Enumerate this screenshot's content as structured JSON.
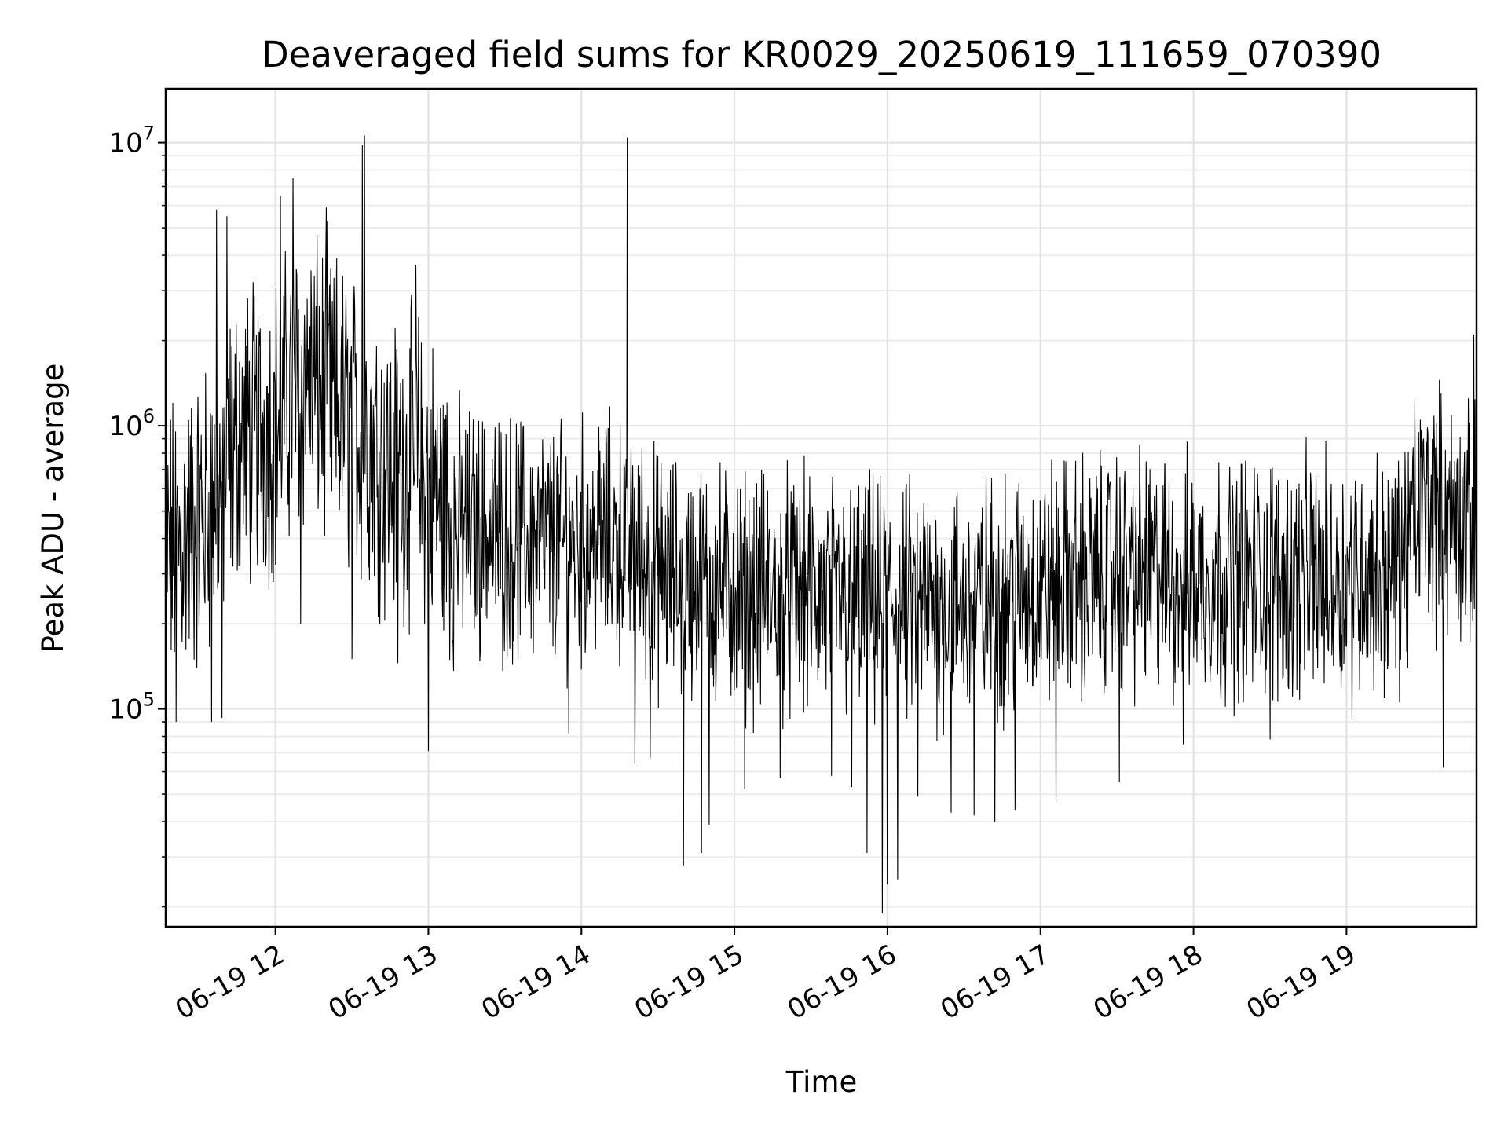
{
  "chart_data": {
    "type": "line",
    "title": "Deaveraged field sums for KR0029_20250619_111659_070390",
    "xlabel": "Time",
    "ylabel": "Peak ADU - average",
    "xlim": [
      "2025-06-19 11:17",
      "2025-06-19 19:51"
    ],
    "ylim": [
      17000,
      15500000
    ],
    "yscale": "log",
    "grid": true,
    "line_color": "#000000",
    "x_ticks": [
      "06-19 12",
      "06-19 13",
      "06-19 14",
      "06-19 15",
      "06-19 16",
      "06-19 17",
      "06-19 18",
      "06-19 19"
    ],
    "y_ticks": [
      {
        "value": 100000,
        "base": "10",
        "exp": "5"
      },
      {
        "value": 1000000,
        "base": "10",
        "exp": "6"
      },
      {
        "value": 10000000,
        "base": "10",
        "exp": "7"
      }
    ],
    "series": [
      {
        "points": [
          {
            "x": "2025-06-19 11:17",
            "y": 350000
          },
          {
            "x": "2025-06-19 11:30",
            "y": 450000
          },
          {
            "x": "2025-06-19 11:38",
            "y": 600000
          },
          {
            "x": "2025-06-19 11:45",
            "y": 900000
          },
          {
            "x": "2025-06-19 12:00",
            "y": 1000000
          },
          {
            "x": "2025-06-19 12:10",
            "y": 1500000
          },
          {
            "x": "2025-06-19 12:20",
            "y": 1300000
          },
          {
            "x": "2025-06-19 12:30",
            "y": 1000000
          },
          {
            "x": "2025-06-19 12:35",
            "y": 950000
          },
          {
            "x": "2025-06-19 12:45",
            "y": 700000
          },
          {
            "x": "2025-06-19 12:55",
            "y": 750000
          },
          {
            "x": "2025-06-19 13:10",
            "y": 450000
          },
          {
            "x": "2025-06-19 13:30",
            "y": 400000
          },
          {
            "x": "2025-06-19 13:50",
            "y": 380000
          },
          {
            "x": "2025-06-19 14:15",
            "y": 400000
          },
          {
            "x": "2025-06-19 14:30",
            "y": 300000
          },
          {
            "x": "2025-06-19 15:00",
            "y": 260000
          },
          {
            "x": "2025-06-19 15:30",
            "y": 250000
          },
          {
            "x": "2025-06-19 16:00",
            "y": 230000
          },
          {
            "x": "2025-06-19 16:30",
            "y": 230000
          },
          {
            "x": "2025-06-19 17:00",
            "y": 270000
          },
          {
            "x": "2025-06-19 17:30",
            "y": 300000
          },
          {
            "x": "2025-06-19 18:00",
            "y": 290000
          },
          {
            "x": "2025-06-19 18:30",
            "y": 290000
          },
          {
            "x": "2025-06-19 19:00",
            "y": 290000
          },
          {
            "x": "2025-06-19 19:20",
            "y": 300000
          },
          {
            "x": "2025-06-19 19:30",
            "y": 550000
          },
          {
            "x": "2025-06-19 19:45",
            "y": 450000
          },
          {
            "x": "2025-06-19 19:51",
            "y": 400000
          }
        ],
        "spikes": [
          {
            "x": "2025-06-19 11:37",
            "y": 5800000
          },
          {
            "x": "2025-06-19 11:41",
            "y": 5500000
          },
          {
            "x": "2025-06-19 12:02",
            "y": 6500000
          },
          {
            "x": "2025-06-19 12:07",
            "y": 7500000
          },
          {
            "x": "2025-06-19 12:20",
            "y": 5900000
          },
          {
            "x": "2025-06-19 12:34",
            "y": 9800000
          },
          {
            "x": "2025-06-19 12:35",
            "y": 10600000
          },
          {
            "x": "2025-06-19 12:55",
            "y": 3700000
          },
          {
            "x": "2025-06-19 14:18",
            "y": 10400000
          },
          {
            "x": "2025-06-19 19:50",
            "y": 2100000
          }
        ],
        "dips": [
          {
            "x": "2025-06-19 11:21",
            "y": 90000
          },
          {
            "x": "2025-06-19 11:35",
            "y": 90000
          },
          {
            "x": "2025-06-19 11:39",
            "y": 93000
          },
          {
            "x": "2025-06-19 12:10",
            "y": 200000
          },
          {
            "x": "2025-06-19 12:30",
            "y": 150000
          },
          {
            "x": "2025-06-19 12:48",
            "y": 145000
          },
          {
            "x": "2025-06-19 13:00",
            "y": 71000
          },
          {
            "x": "2025-06-19 13:55",
            "y": 82000
          },
          {
            "x": "2025-06-19 14:21",
            "y": 64000
          },
          {
            "x": "2025-06-19 14:27",
            "y": 67000
          },
          {
            "x": "2025-06-19 14:40",
            "y": 28000
          },
          {
            "x": "2025-06-19 14:47",
            "y": 31000
          },
          {
            "x": "2025-06-19 14:50",
            "y": 39000
          },
          {
            "x": "2025-06-19 15:04",
            "y": 52000
          },
          {
            "x": "2025-06-19 15:18",
            "y": 57000
          },
          {
            "x": "2025-06-19 15:38",
            "y": 58000
          },
          {
            "x": "2025-06-19 15:46",
            "y": 53000
          },
          {
            "x": "2025-06-19 15:52",
            "y": 31000
          },
          {
            "x": "2025-06-19 15:58",
            "y": 19000
          },
          {
            "x": "2025-06-19 16:00",
            "y": 24000
          },
          {
            "x": "2025-06-19 16:04",
            "y": 25000
          },
          {
            "x": "2025-06-19 16:12",
            "y": 49000
          },
          {
            "x": "2025-06-19 16:25",
            "y": 43000
          },
          {
            "x": "2025-06-19 16:34",
            "y": 42000
          },
          {
            "x": "2025-06-19 16:42",
            "y": 40000
          },
          {
            "x": "2025-06-19 16:50",
            "y": 44000
          },
          {
            "x": "2025-06-19 17:06",
            "y": 47000
          },
          {
            "x": "2025-06-19 17:31",
            "y": 55000
          },
          {
            "x": "2025-06-19 17:56",
            "y": 75000
          },
          {
            "x": "2025-06-19 18:30",
            "y": 78000
          },
          {
            "x": "2025-06-19 19:38",
            "y": 62000
          }
        ]
      }
    ]
  }
}
